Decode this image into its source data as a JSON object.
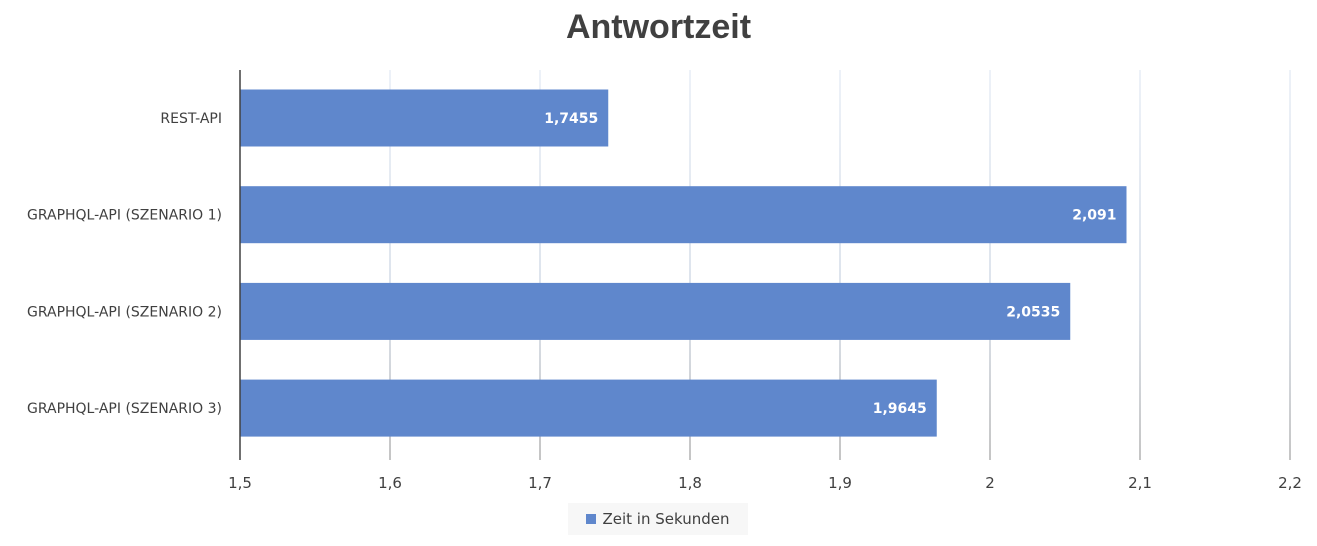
{
  "chart_data": {
    "type": "bar",
    "orientation": "horizontal",
    "title": "Antwortzeit",
    "categories": [
      "REST-API",
      "GRAPHQL-API (SZENARIO 1)",
      "GRAPHQL-API (SZENARIO 2)",
      "GRAPHQL-API (SZENARIO 3)"
    ],
    "series": [
      {
        "name": "Zeit in Sekunden",
        "values": [
          1.7455,
          2.091,
          2.0535,
          1.9645
        ],
        "labels": [
          "1,7455",
          "2,091",
          "2,0535",
          "1,9645"
        ],
        "color": "#5f87cc"
      }
    ],
    "xlim": [
      1.5,
      2.2
    ],
    "xticks": [
      1.5,
      1.6,
      1.7,
      1.8,
      1.9,
      2.0,
      2.1,
      2.2
    ],
    "xtick_labels": [
      "1,5",
      "1,6",
      "1,7",
      "1,8",
      "1,9",
      "2",
      "2,1",
      "2,2"
    ],
    "grid": true,
    "legend": "bottom"
  }
}
